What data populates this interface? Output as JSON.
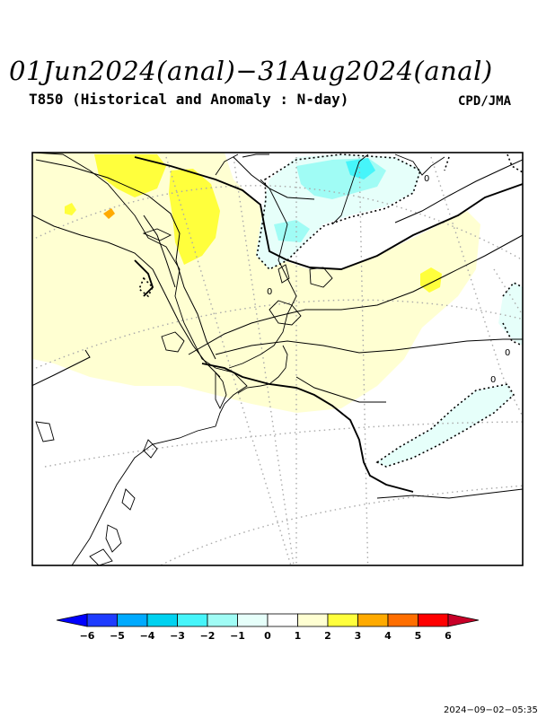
{
  "header": {
    "title": "01Jun2024(anal)−31Aug2024(anal)",
    "subtitle": "T850 (Historical and Anomaly : N-day)",
    "source": "CPD/JMA"
  },
  "map": {
    "region": "East Asia / Northwest Pacific",
    "contour_labels": [
      "0",
      "0",
      "0",
      "0"
    ]
  },
  "legend": {
    "ticks": [
      "−6",
      "−5",
      "−4",
      "−3",
      "−2",
      "−1",
      "0",
      "1",
      "2",
      "3",
      "4",
      "5",
      "6"
    ],
    "colors": [
      "#1e3cff",
      "#00aaff",
      "#00d2f0",
      "#46f5fa",
      "#a0fcf5",
      "#e6fffa",
      "#ffffff",
      "#ffffd2",
      "#ffff3c",
      "#ffaa00",
      "#ff6e00",
      "#ff0000"
    ],
    "low_extension_color": "#0000ff",
    "high_extension_color": "#c80028"
  },
  "footer": {
    "timestamp": "2024−09−02−05:35"
  }
}
